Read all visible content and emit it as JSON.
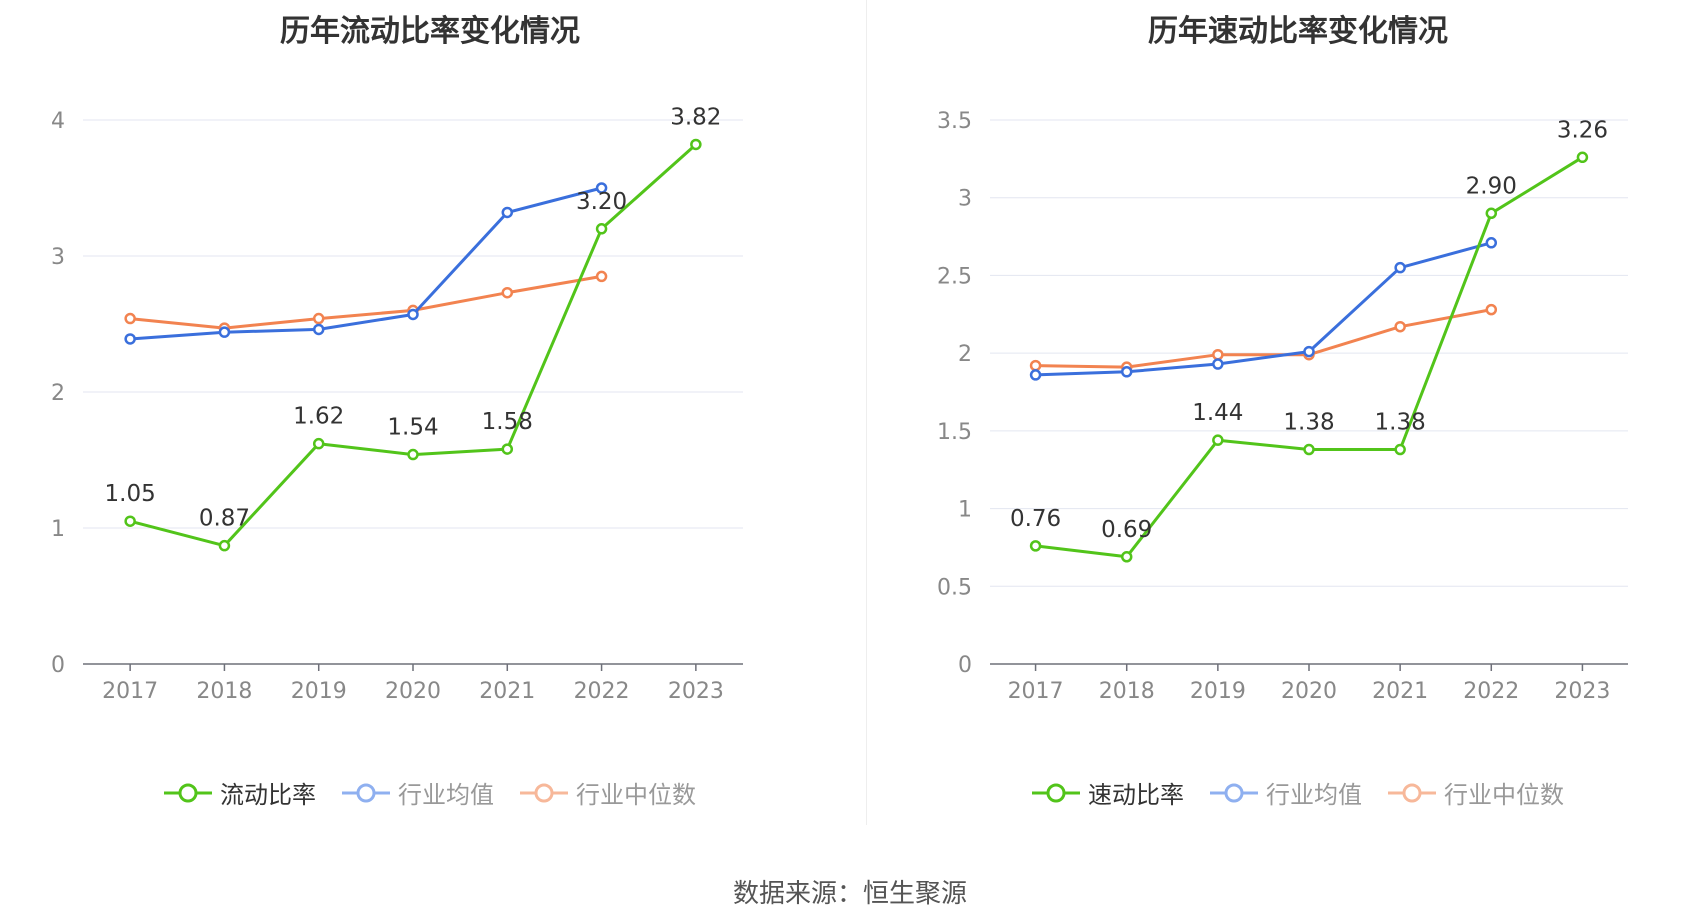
{
  "source_text": "数据来源：恒生聚源",
  "legend_colors": {
    "primary": "#52c41a",
    "avg": "#3a6fdc",
    "median": "#f28350"
  },
  "chart_data": [
    {
      "type": "line",
      "title": "历年流动比率变化情况",
      "categories": [
        "2017",
        "2018",
        "2019",
        "2020",
        "2021",
        "2022",
        "2023"
      ],
      "ylim": [
        0,
        4
      ],
      "yticks": [
        0,
        1,
        2,
        3,
        4
      ],
      "ytick_labels": [
        "0",
        "1",
        "2",
        "3",
        "4"
      ],
      "grid": true,
      "legend_position": "bottom",
      "series": [
        {
          "name": "流动比率",
          "color": "#52c41a",
          "values": [
            1.05,
            0.87,
            1.62,
            1.54,
            1.58,
            3.2,
            3.82
          ],
          "labels": [
            "1.05",
            "0.87",
            "1.62",
            "1.54",
            "1.58",
            "3.20",
            "3.82"
          ]
        },
        {
          "name": "行业均值",
          "color": "#3a6fdc",
          "values": [
            2.39,
            2.44,
            2.46,
            2.57,
            3.32,
            3.5,
            null
          ]
        },
        {
          "name": "行业中位数",
          "color": "#f28350",
          "values": [
            2.54,
            2.47,
            2.54,
            2.6,
            2.73,
            2.85,
            null
          ]
        }
      ]
    },
    {
      "type": "line",
      "title": "历年速动比率变化情况",
      "categories": [
        "2017",
        "2018",
        "2019",
        "2020",
        "2021",
        "2022",
        "2023"
      ],
      "ylim": [
        0,
        3.5
      ],
      "yticks": [
        0,
        0.5,
        1,
        1.5,
        2,
        2.5,
        3,
        3.5
      ],
      "ytick_labels": [
        "0",
        "0.5",
        "1",
        "1.5",
        "2",
        "2.5",
        "3",
        "3.5"
      ],
      "grid": true,
      "legend_position": "bottom",
      "series": [
        {
          "name": "速动比率",
          "color": "#52c41a",
          "values": [
            0.76,
            0.69,
            1.44,
            1.38,
            1.38,
            2.9,
            3.26
          ],
          "labels": [
            "0.76",
            "0.69",
            "1.44",
            "1.38",
            "1.38",
            "2.90",
            "3.26"
          ]
        },
        {
          "name": "行业均值",
          "color": "#3a6fdc",
          "values": [
            1.86,
            1.88,
            1.93,
            2.01,
            2.55,
            2.71,
            null
          ]
        },
        {
          "name": "行业中位数",
          "color": "#f28350",
          "values": [
            1.92,
            1.91,
            1.99,
            1.99,
            2.17,
            2.28,
            null
          ]
        }
      ]
    }
  ]
}
